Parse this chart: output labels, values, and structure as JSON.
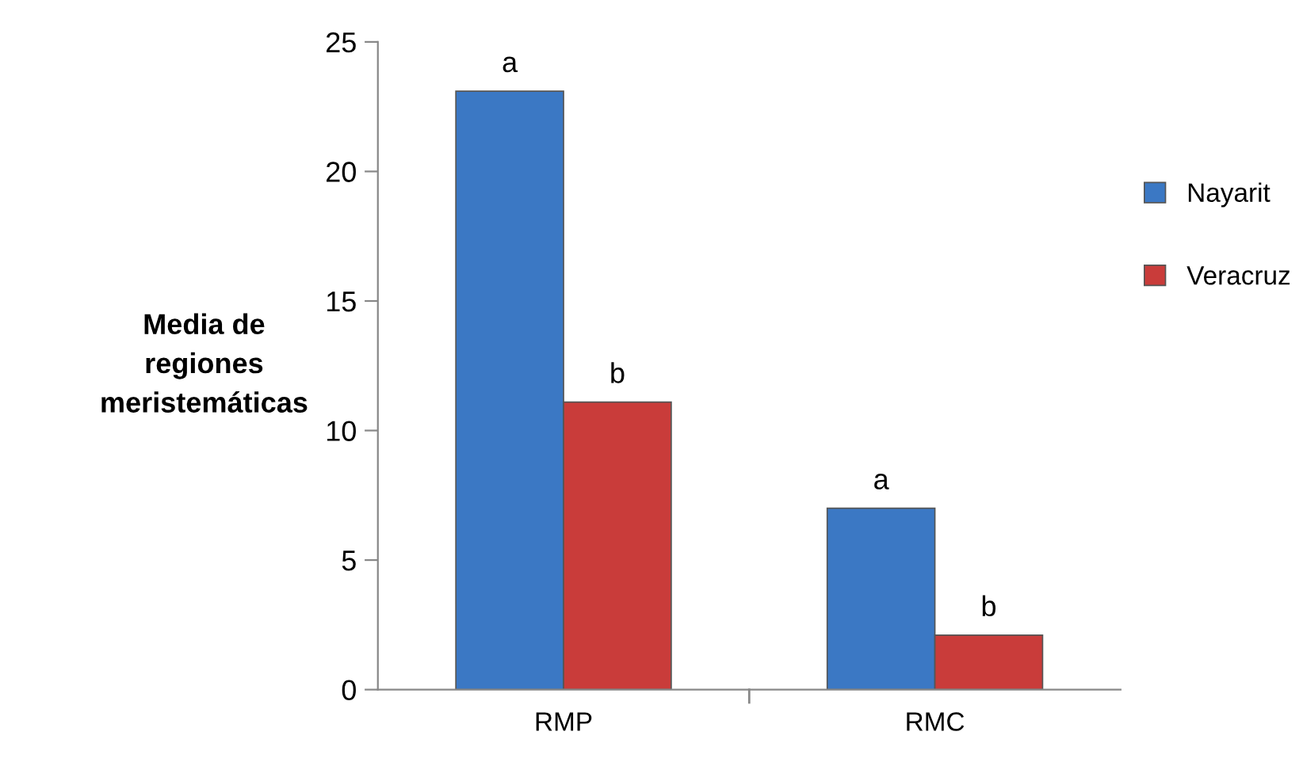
{
  "chart_data": {
    "type": "bar",
    "ylabel": "Media de\nregiones\nmeristemáticas",
    "categories": [
      "RMP",
      "RMC"
    ],
    "series": [
      {
        "name": "Nayarit",
        "color": "#3b78c4",
        "values": [
          23.1,
          7.0
        ],
        "value_labels": [
          "a",
          "a"
        ]
      },
      {
        "name": "Veracruz",
        "color": "#c93c3a",
        "values": [
          11.1,
          2.1
        ],
        "value_labels": [
          "b",
          "b"
        ]
      }
    ],
    "ylim": [
      0,
      25
    ],
    "yticks": [
      0,
      5,
      10,
      15,
      20,
      25
    ],
    "grid": false,
    "legend": "right"
  }
}
